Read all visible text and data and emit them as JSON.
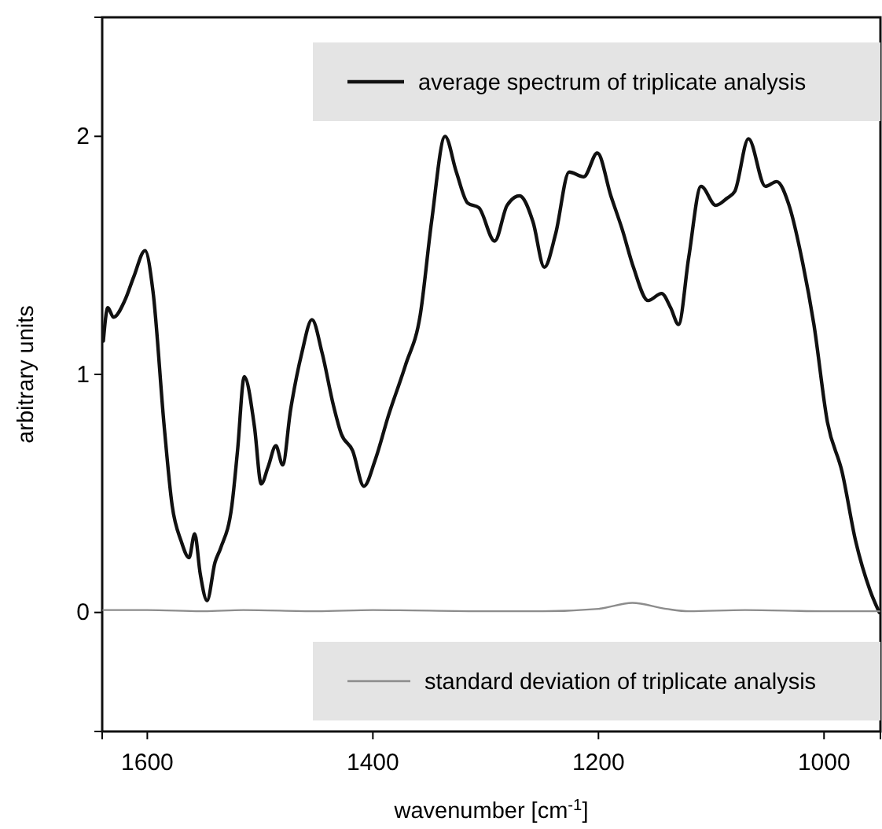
{
  "chart_data": {
    "type": "line",
    "xlabel": "wavenumber [cm$^{-1}$]",
    "ylabel": "arbitrary units",
    "xlim": [
      1640,
      950
    ],
    "xticks": [
      1600,
      1400,
      1200,
      1000
    ],
    "ylim": [
      -0.5,
      2.5
    ],
    "yticks": [
      0,
      1,
      2
    ],
    "legend": "right",
    "line_style": "solid",
    "series": [
      {
        "name": "average spectrum of triplicate analysis",
        "color": "#111111",
        "x": [
          1639,
          1635,
          1630,
          1620,
          1612,
          1602,
          1595,
          1585,
          1578,
          1570,
          1563,
          1558,
          1553,
          1547,
          1540,
          1535,
          1525,
          1520,
          1514,
          1505,
          1499,
          1493,
          1486,
          1480,
          1473,
          1463,
          1454,
          1445,
          1435,
          1428,
          1418,
          1408,
          1398,
          1386,
          1371,
          1358,
          1348,
          1336,
          1326,
          1316,
          1306,
          1292,
          1281,
          1270,
          1258,
          1248,
          1238,
          1226,
          1213,
          1201,
          1189,
          1179,
          1169,
          1156,
          1144,
          1136,
          1129,
          1120,
          1109,
          1096,
          1086,
          1079,
          1067,
          1052,
          1042,
          1031,
          1019,
          1009,
          997,
          984,
          972,
          959,
          951
        ],
        "values": [
          1.14,
          1.28,
          1.24,
          1.31,
          1.41,
          1.52,
          1.35,
          0.78,
          0.45,
          0.3,
          0.23,
          0.33,
          0.16,
          0.05,
          0.21,
          0.27,
          0.45,
          0.68,
          0.99,
          0.78,
          0.54,
          0.61,
          0.7,
          0.62,
          0.85,
          1.09,
          1.23,
          1.09,
          0.87,
          0.75,
          0.68,
          0.53,
          0.64,
          0.83,
          1.04,
          1.25,
          1.64,
          2.0,
          1.85,
          1.72,
          1.7,
          1.56,
          1.71,
          1.75,
          1.64,
          1.45,
          1.59,
          1.85,
          1.83,
          1.93,
          1.75,
          1.61,
          1.45,
          1.31,
          1.34,
          1.28,
          1.21,
          1.49,
          1.79,
          1.71,
          1.74,
          1.77,
          1.99,
          1.79,
          1.81,
          1.71,
          1.47,
          1.21,
          0.8,
          0.59,
          0.3,
          0.09,
          0.0
        ]
      },
      {
        "name": "standard deviation of triplicate analysis",
        "color": "#8c8c8c",
        "x": [
          1639,
          1600,
          1550,
          1515,
          1450,
          1400,
          1300,
          1250,
          1200,
          1170,
          1140,
          1120,
          1070,
          1000,
          951
        ],
        "values": [
          0.01,
          0.01,
          0.005,
          0.01,
          0.005,
          0.01,
          0.005,
          0.005,
          0.015,
          0.04,
          0.015,
          0.005,
          0.01,
          0.005,
          0.005
        ]
      }
    ]
  }
}
